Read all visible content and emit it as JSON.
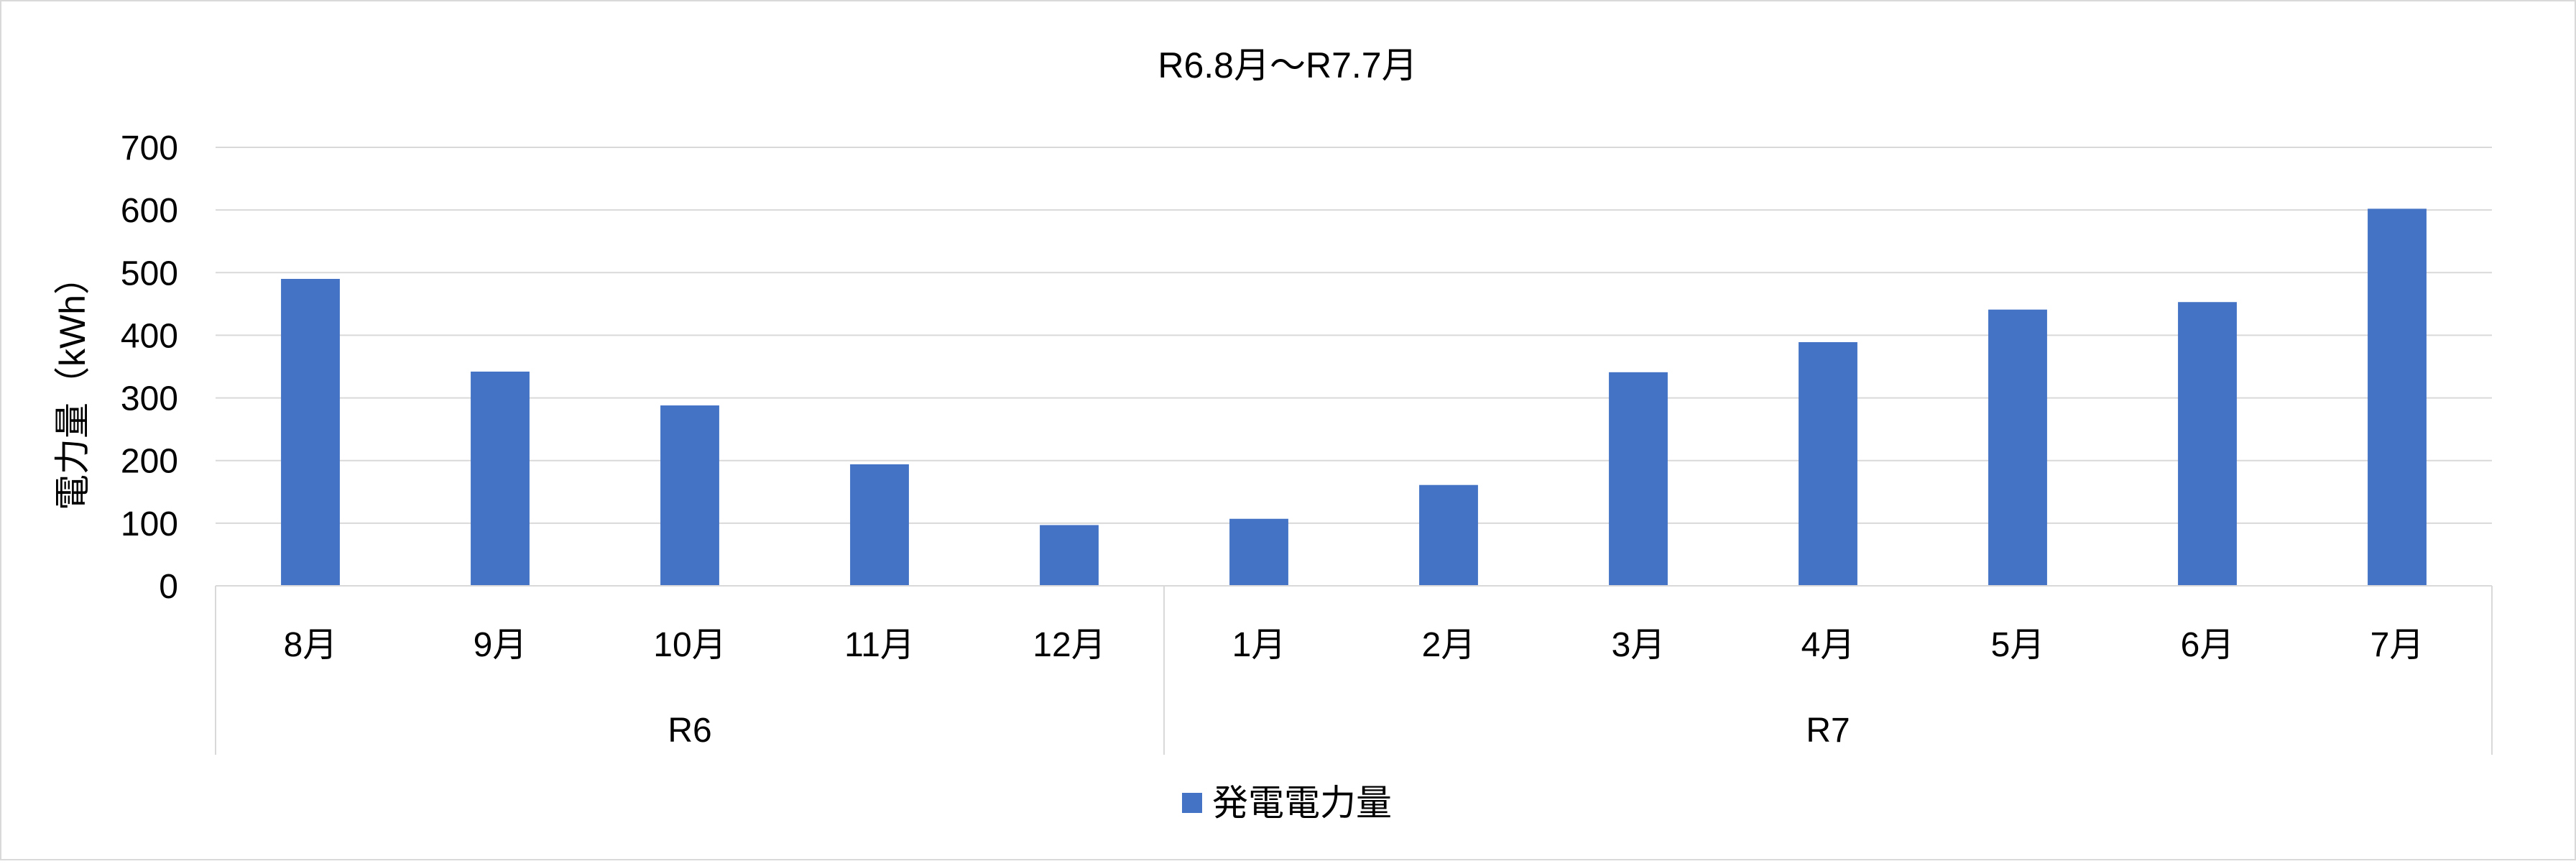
{
  "chart_data": {
    "type": "bar",
    "title": "R6.8月～R7.7月",
    "ylabel": "電力量（kWh）",
    "xlabel": "",
    "ylim": [
      0,
      700
    ],
    "yticks": [
      0,
      100,
      200,
      300,
      400,
      500,
      600,
      700
    ],
    "grid": true,
    "legend_position": "bottom",
    "bar_color": "#4472C4",
    "grid_color": "#D9D9D9",
    "categories": [
      "8月",
      "9月",
      "10月",
      "11月",
      "12月",
      "1月",
      "2月",
      "3月",
      "4月",
      "5月",
      "6月",
      "7月"
    ],
    "groups": [
      {
        "label": "R6",
        "count": 5
      },
      {
        "label": "R7",
        "count": 7
      }
    ],
    "series": [
      {
        "name": "発電電力量",
        "values": [
          490,
          342,
          288,
          194,
          97,
          107,
          161,
          341,
          389,
          441,
          453,
          602
        ]
      }
    ]
  }
}
